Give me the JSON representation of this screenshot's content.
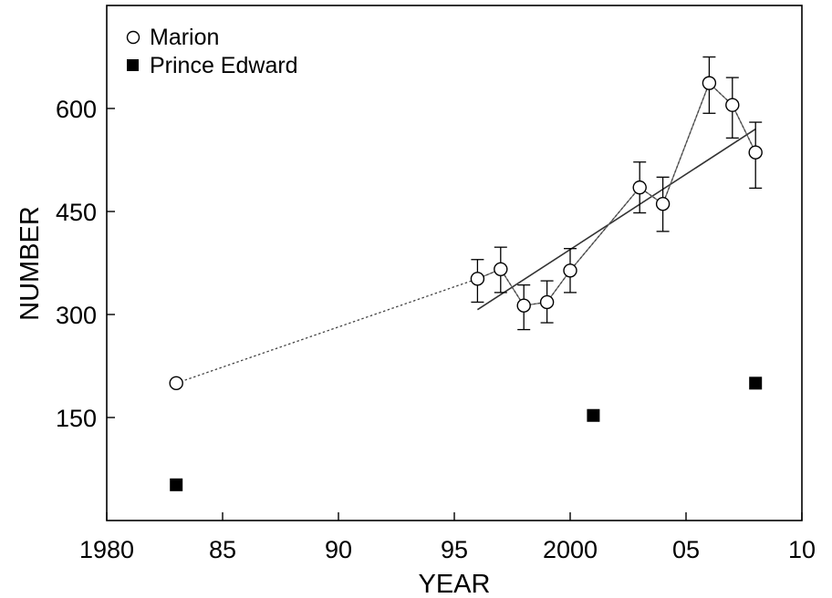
{
  "chart_data": {
    "type": "scatter",
    "title": "",
    "xlabel": "YEAR",
    "ylabel": "NUMBER",
    "xlim": [
      1980,
      2010
    ],
    "ylim": [
      0,
      750
    ],
    "x_ticks": [
      1980,
      1985,
      1990,
      1995,
      2000,
      2005,
      2010
    ],
    "x_tick_labels": [
      "1980",
      "85",
      "90",
      "95",
      "2000",
      "05",
      "10"
    ],
    "y_ticks": [
      150,
      300,
      450,
      600
    ],
    "y_tick_labels": [
      "150",
      "300",
      "450",
      "600"
    ],
    "grid": false,
    "legend_position": "top-left",
    "series": [
      {
        "name": "Marion",
        "marker": "open-circle",
        "connector": "dotted",
        "x": [
          1983,
          1996,
          1997,
          1998,
          1999,
          2000,
          2003,
          2004,
          2006,
          2007,
          2008
        ],
        "y": [
          200,
          352,
          366,
          313,
          318,
          364,
          485,
          461,
          637,
          605,
          536
        ],
        "error_low": [
          null,
          318,
          332,
          278,
          288,
          332,
          448,
          421,
          593,
          557,
          484
        ],
        "error_high": [
          null,
          380,
          398,
          343,
          349,
          396,
          522,
          500,
          675,
          645,
          580
        ]
      },
      {
        "name": "Prince Edward",
        "marker": "filled-square",
        "x": [
          1983,
          2001,
          2008
        ],
        "y": [
          52,
          153,
          200
        ]
      }
    ],
    "fits": [
      {
        "kind": "linear-trend",
        "x": [
          1996,
          2008
        ],
        "y": [
          307,
          570
        ]
      },
      {
        "kind": "smoothed",
        "x": [
          1996,
          1997,
          1998,
          1999,
          2000,
          2003,
          2004,
          2006,
          2007,
          2008
        ],
        "y": [
          352,
          366,
          313,
          318,
          364,
          485,
          461,
          637,
          605,
          536
        ]
      }
    ]
  }
}
